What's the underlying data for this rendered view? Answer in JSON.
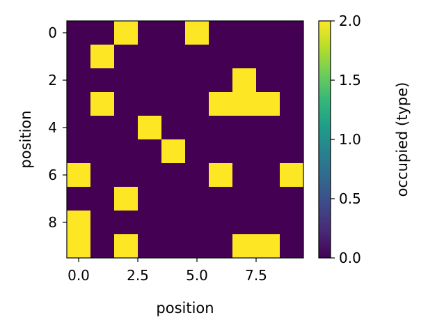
{
  "chart_data": {
    "type": "heatmap",
    "xlabel": "position",
    "ylabel": "position",
    "colorbar_label": "occupied (type)",
    "colormap": "viridis",
    "colormap_low": "#440154",
    "colormap_high": "#fde725",
    "value_range": [
      0,
      2
    ],
    "x_range": [
      -0.5,
      9.5
    ],
    "y_range": [
      -0.5,
      9.5
    ],
    "y_inverted": true,
    "x_ticks": [
      "0.0",
      "2.5",
      "5.0",
      "7.5"
    ],
    "x_tick_values": [
      0,
      2.5,
      5,
      7.5
    ],
    "y_ticks": [
      "0",
      "2",
      "4",
      "6",
      "8"
    ],
    "y_tick_values": [
      0,
      2,
      4,
      6,
      8
    ],
    "colorbar_ticks": [
      "0.0",
      "0.5",
      "1.0",
      "1.5",
      "2.0"
    ],
    "colorbar_tick_values": [
      0,
      0.5,
      1,
      1.5,
      2
    ],
    "grid": false,
    "matrix": [
      [
        0,
        0,
        2,
        0,
        0,
        2,
        0,
        0,
        0,
        0
      ],
      [
        0,
        2,
        0,
        0,
        0,
        0,
        0,
        0,
        0,
        0
      ],
      [
        0,
        0,
        0,
        0,
        0,
        0,
        0,
        2,
        0,
        0
      ],
      [
        0,
        2,
        0,
        0,
        0,
        0,
        2,
        2,
        2,
        0
      ],
      [
        0,
        0,
        0,
        2,
        0,
        0,
        0,
        0,
        0,
        0
      ],
      [
        0,
        0,
        0,
        0,
        2,
        0,
        0,
        0,
        0,
        0
      ],
      [
        2,
        0,
        0,
        0,
        0,
        0,
        2,
        0,
        0,
        2
      ],
      [
        0,
        0,
        2,
        0,
        0,
        0,
        0,
        0,
        0,
        0
      ],
      [
        2,
        0,
        0,
        0,
        0,
        0,
        0,
        0,
        0,
        0
      ],
      [
        2,
        0,
        2,
        0,
        0,
        0,
        0,
        2,
        2,
        0
      ]
    ]
  }
}
